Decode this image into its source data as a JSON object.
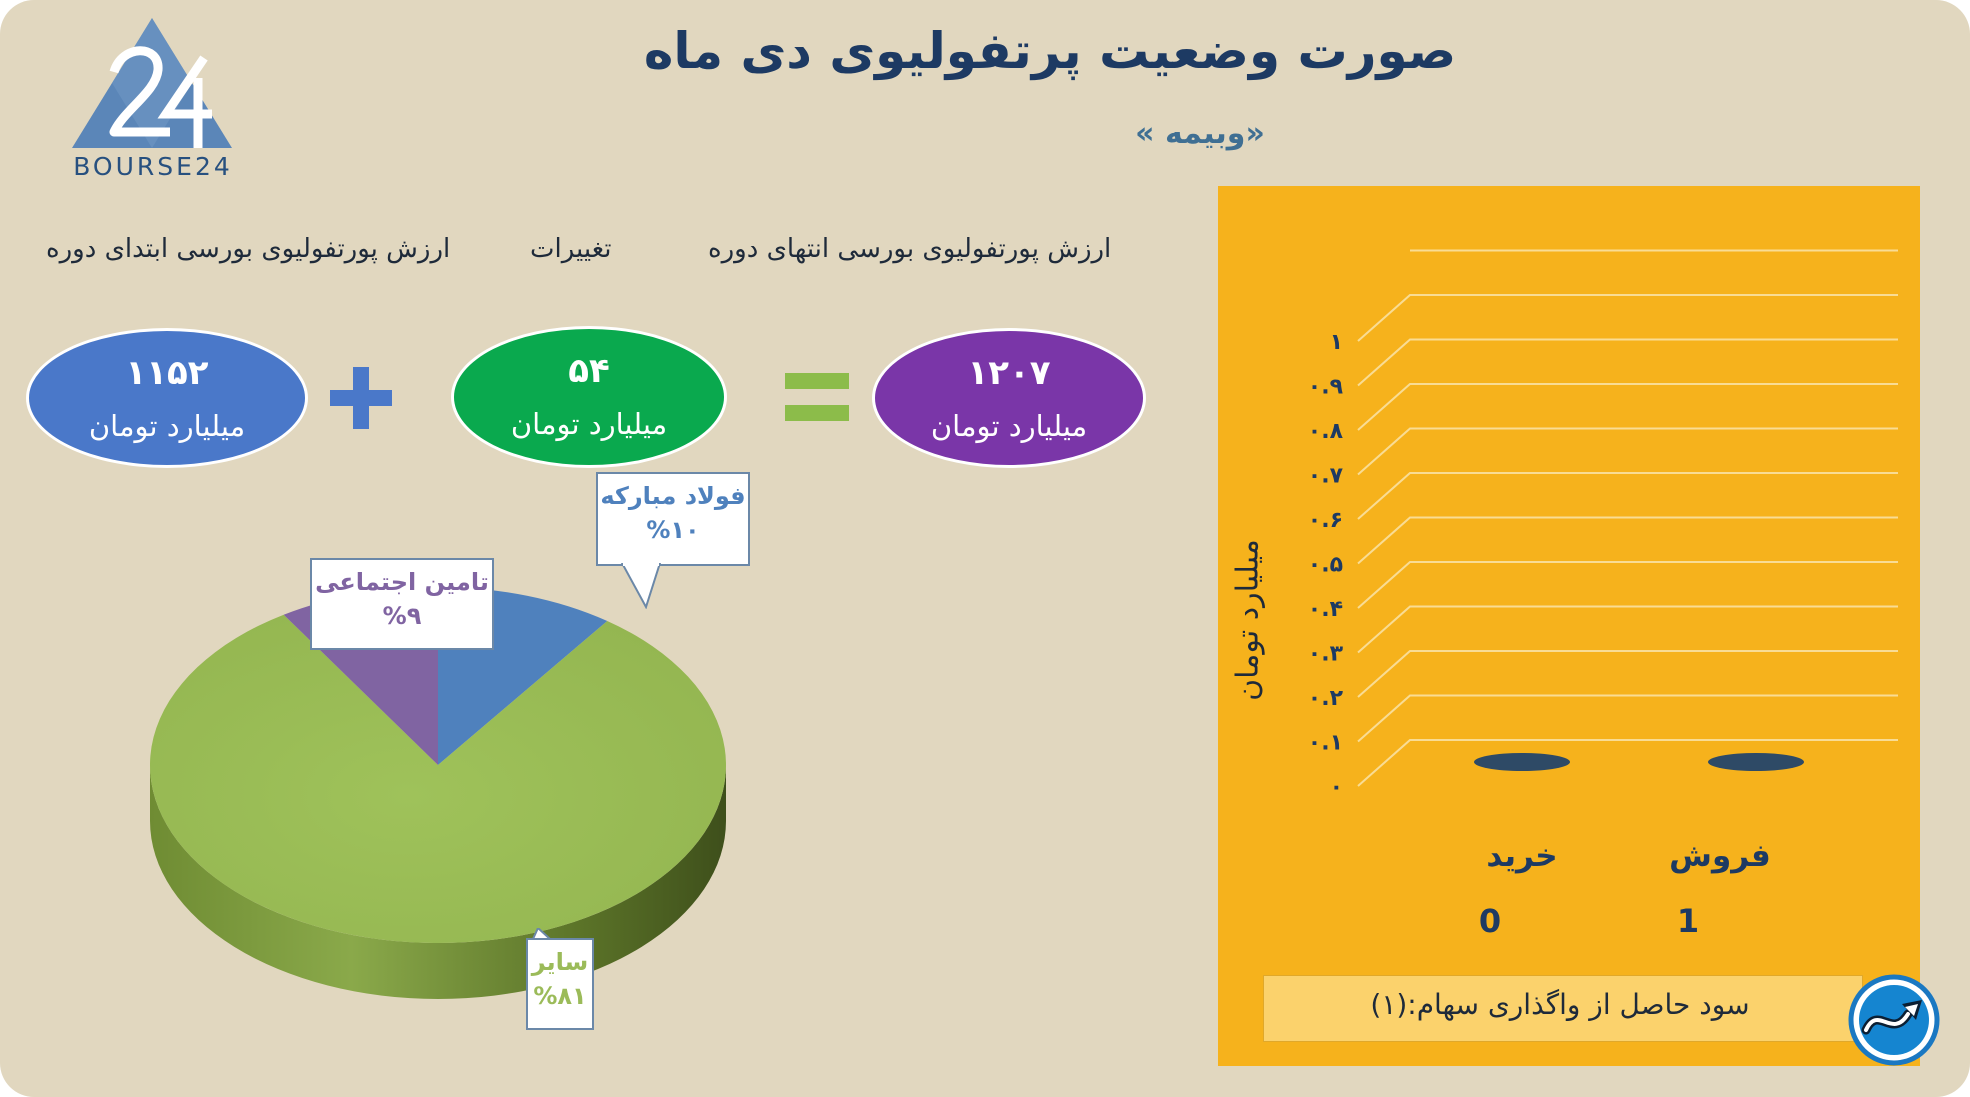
{
  "header": {
    "title": "صورت وضعیت پرتفولیوی دی ماه",
    "subtitle": "«وبیمه »"
  },
  "logo": {
    "text": "BOURSE24",
    "mark": "24"
  },
  "summary": {
    "start_label": "ارزش پورتفولیوی بورسی ابتدای دوره",
    "change_label": "تغییرات",
    "end_label": "ارزش پورتفولیوی بورسی انتهای دوره",
    "start_value": "۱۱۵۲",
    "change_value": "۵۴",
    "end_value": "۱۲۰۷",
    "unit": "میلیارد تومان",
    "colors": {
      "start": "#4a78c9",
      "change": "#0aa94e",
      "end": "#7a36a8",
      "operator": "#4a78c9",
      "equals": "#8cbc4a"
    }
  },
  "chart_data": [
    {
      "type": "pie",
      "title": "",
      "slices": [
        {
          "label": "فولاد مبارکه",
          "value": 10,
          "value_label": "%۱۰",
          "color": "#4f81bd"
        },
        {
          "label": "سایر",
          "value": 81,
          "value_label": "%۸۱",
          "color": "#9bbb59"
        },
        {
          "label": "تامین اجتماعی",
          "value": 9,
          "value_label": "%۹",
          "color": "#8064a2"
        }
      ]
    },
    {
      "type": "bar",
      "title": "",
      "categories": [
        "خرید",
        "فروش"
      ],
      "values": [
        0,
        0
      ],
      "counts": [
        "0",
        "1"
      ],
      "ylabel": "میلیارد تومان",
      "ylim": [
        0,
        1
      ],
      "yticks": [
        "۰",
        "۰.۱",
        "۰.۲",
        "۰.۳",
        "۰.۴",
        "۰.۵",
        "۰.۶",
        "۰.۷",
        "۰.۸",
        "۰.۹",
        "۱"
      ],
      "grid": true,
      "colors": {
        "panel": "#f6b21c",
        "bar": "#2e4a66",
        "grid": "#f9dc94"
      }
    }
  ],
  "footer": {
    "profit_label": "سود حاصل از واگذاری سهام:(۱)",
    "app_icon": "trend-arrow-icon"
  }
}
